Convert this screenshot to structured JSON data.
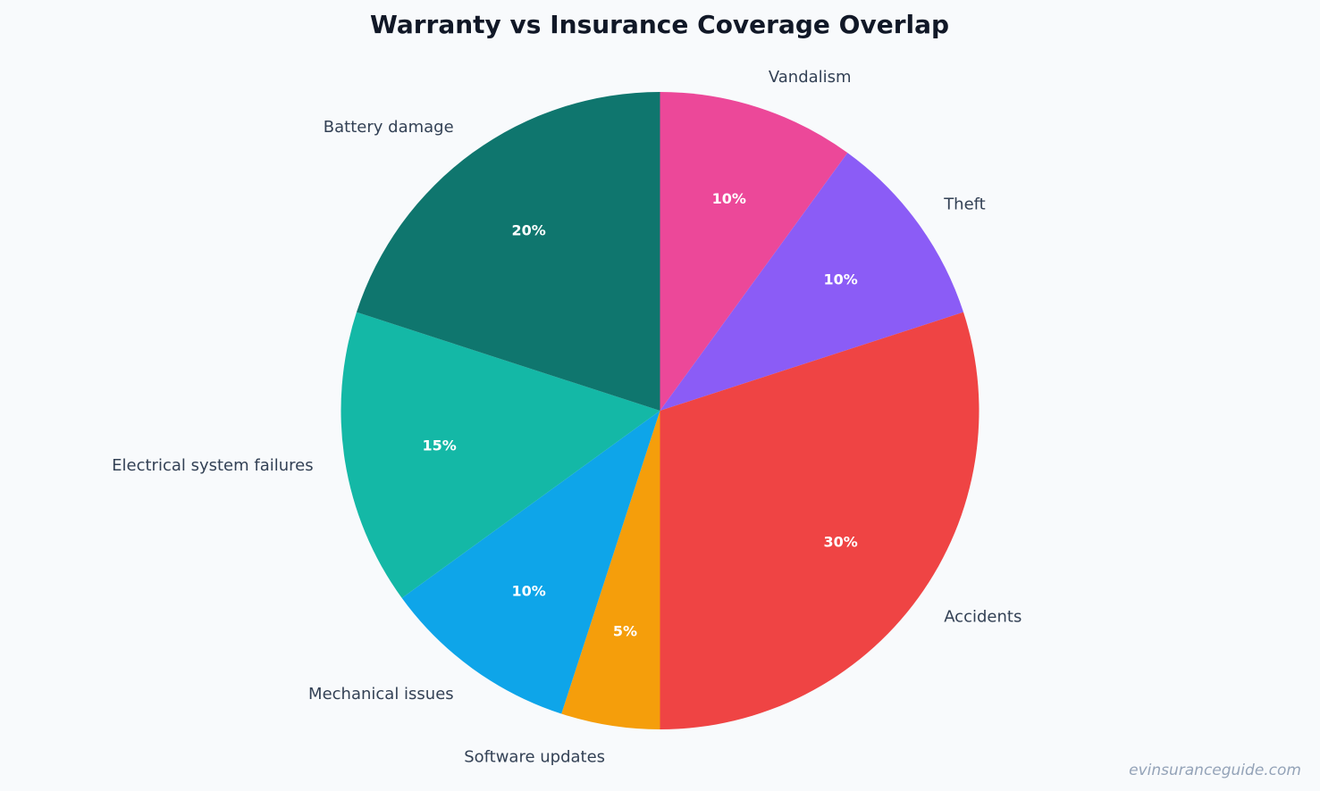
{
  "chart_data": {
    "type": "pie",
    "title": "Warranty vs Insurance Coverage Overlap",
    "start_angle_deg": 90,
    "direction": "clockwise",
    "slices": [
      {
        "label": "Vandalism",
        "value": 10,
        "percent_label": "10%",
        "color": "#ec4899"
      },
      {
        "label": "Theft",
        "value": 10,
        "percent_label": "10%",
        "color": "#8b5cf6"
      },
      {
        "label": "Accidents",
        "value": 30,
        "percent_label": "30%",
        "color": "#ef4444"
      },
      {
        "label": "Software updates",
        "value": 5,
        "percent_label": "5%",
        "color": "#f59e0b"
      },
      {
        "label": "Mechanical issues",
        "value": 10,
        "percent_label": "10%",
        "color": "#0ea5e9"
      },
      {
        "label": "Electrical system failures",
        "value": 15,
        "percent_label": "15%",
        "color": "#14b8a6"
      },
      {
        "label": "Battery damage",
        "value": 20,
        "percent_label": "20%",
        "color": "#0f766e"
      }
    ]
  },
  "watermark": "evinsuranceguide.com"
}
